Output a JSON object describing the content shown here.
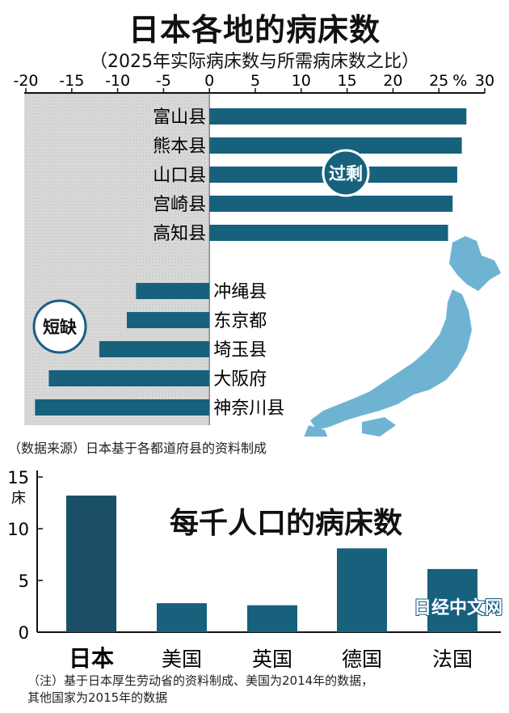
{
  "title": "日本各地的病床数",
  "subtitle": "（2025年实际病床数与所需病床数之比）",
  "source_note": "（数据来源）日本基于各都道府县的资料制成",
  "footnote_lines": [
    "（注）基于日本厚生劳动省的资料制成、美国为2014年的数据，",
    "其他国家为2015年的数据"
  ],
  "watermark": "日经中文网",
  "colors": {
    "bar": "#17617d",
    "bar_dark": "#1a4f66",
    "map": "#6fb3d2",
    "shade": "#d8d8d8"
  },
  "chart_data": [
    {
      "type": "bar",
      "orientation": "horizontal",
      "xlim": [
        -20,
        30
      ],
      "xticks": [
        "-20",
        "-15",
        "-10",
        "-5",
        "0",
        "5",
        "10",
        "15",
        "20",
        "25",
        "30"
      ],
      "unit_label": "%",
      "groups": [
        {
          "label": "过剩",
          "categories": [
            "富山县",
            "熊本县",
            "山口县",
            "宫崎县",
            "高知县"
          ],
          "values": [
            28,
            27.5,
            27,
            26.5,
            26
          ]
        },
        {
          "label": "短缺",
          "categories": [
            "冲绳县",
            "东京都",
            "埼玉县",
            "大阪府",
            "神奈川县"
          ],
          "values": [
            -8,
            -9,
            -12,
            -17.5,
            -19
          ]
        }
      ]
    },
    {
      "type": "bar",
      "title": "每千人口的病床数",
      "ylabel": "床",
      "ylim": [
        0,
        15
      ],
      "yticks": [
        "0",
        "5",
        "10",
        "15"
      ],
      "categories": [
        "日本",
        "美国",
        "英国",
        "德国",
        "法国"
      ],
      "values": [
        13.2,
        2.8,
        2.6,
        8.1,
        6.1
      ]
    }
  ]
}
